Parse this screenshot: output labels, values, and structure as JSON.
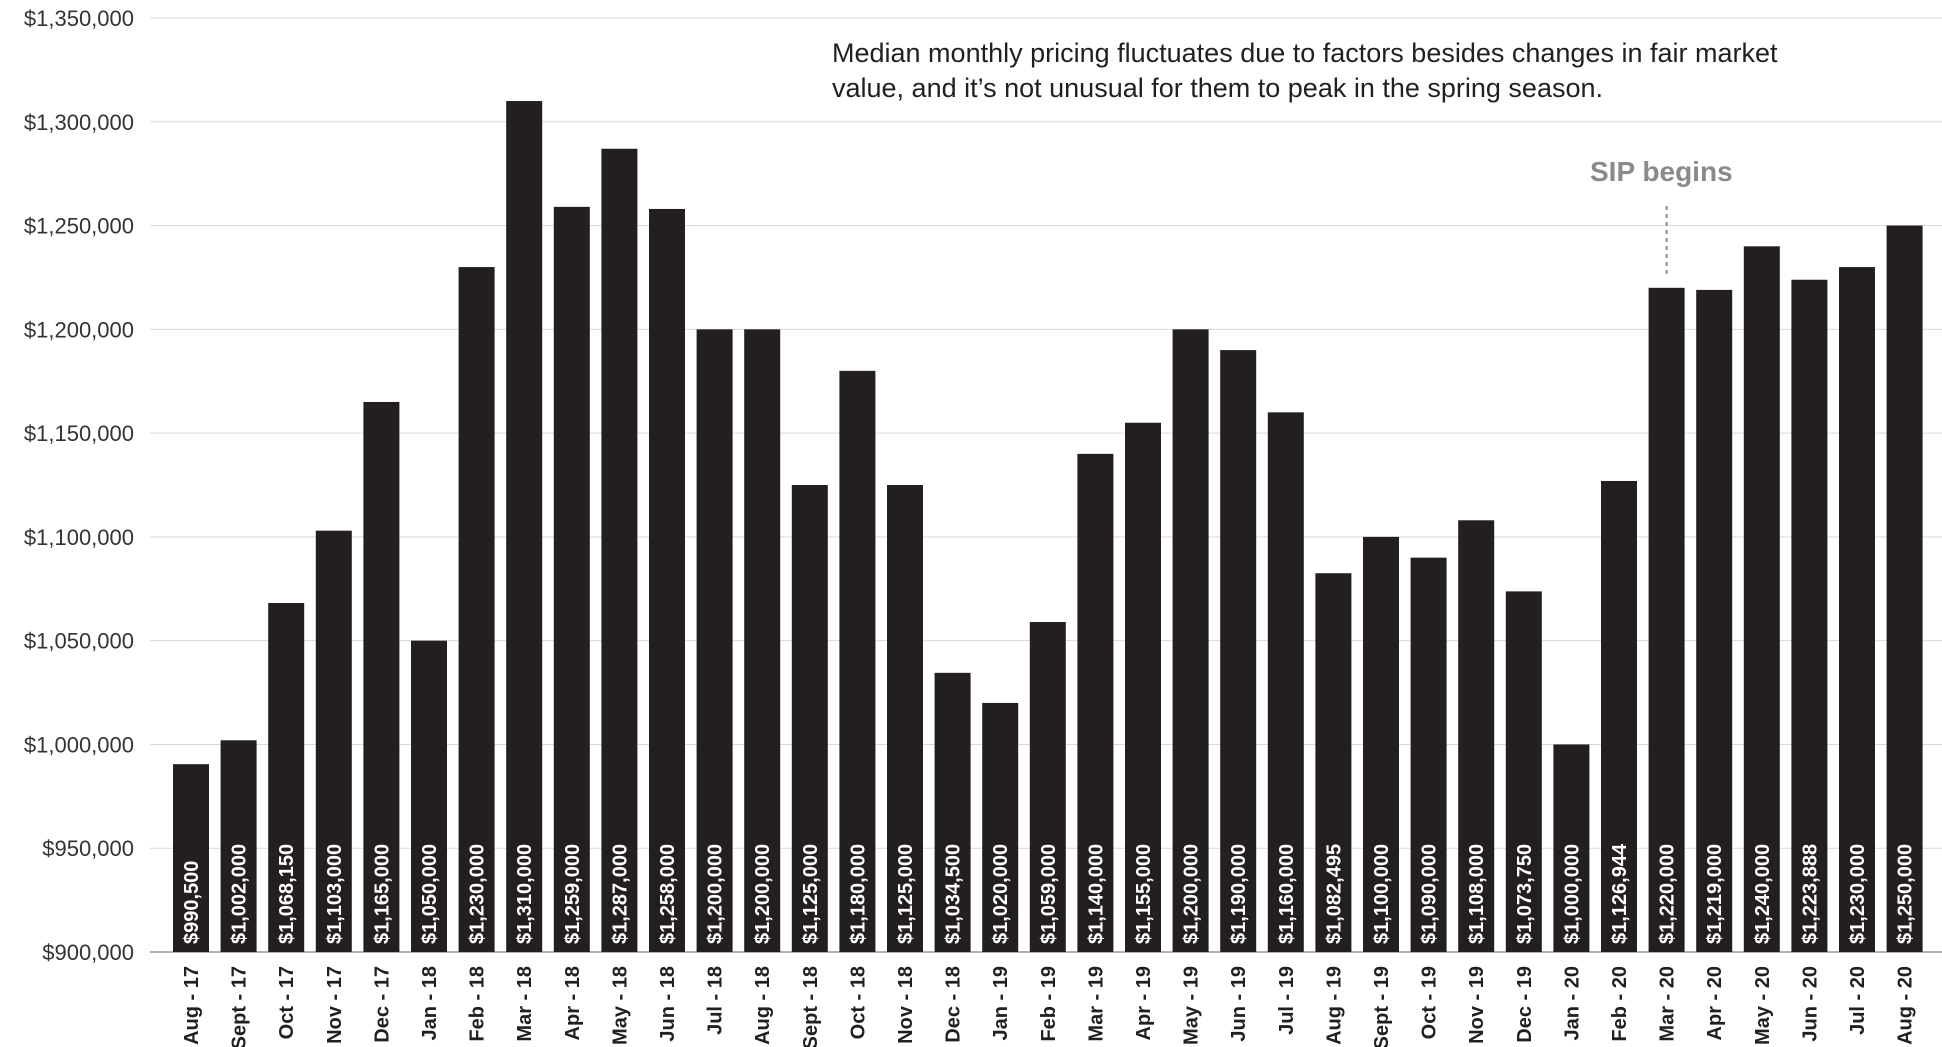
{
  "chart_data": {
    "type": "bar",
    "title": "",
    "xlabel": "",
    "ylabel": "",
    "ylim": [
      900000,
      1350000
    ],
    "yticks": [
      "$900,000",
      "$950,000",
      "$1,000,000",
      "$1,050,000",
      "$1,100,000",
      "$1,150,000",
      "$1,200,000",
      "$1,250,000",
      "$1,300,000",
      "$1,350,000"
    ],
    "ytick_values": [
      900000,
      950000,
      1000000,
      1050000,
      1100000,
      1150000,
      1200000,
      1250000,
      1300000,
      1350000
    ],
    "grid": true,
    "bar_color": "#231f20",
    "categories": [
      "Aug - 17",
      "Sept - 17",
      "Oct - 17",
      "Nov - 17",
      "Dec - 17",
      "Jan - 18",
      "Feb - 18",
      "Mar - 18",
      "Apr - 18",
      "May - 18",
      "Jun - 18",
      "Jul - 18",
      "Aug - 18",
      "Sept - 18",
      "Oct - 18",
      "Nov - 18",
      "Dec - 18",
      "Jan - 19",
      "Feb - 19",
      "Mar - 19",
      "Apr - 19",
      "May - 19",
      "Jun - 19",
      "Jul - 19",
      "Aug - 19",
      "Sept - 19",
      "Oct - 19",
      "Nov - 19",
      "Dec - 19",
      "Jan - 20",
      "Feb - 20",
      "Mar - 20",
      "Apr - 20",
      "May - 20",
      "Jun - 20",
      "Jul - 20",
      "Aug - 20"
    ],
    "values": [
      990500,
      1002000,
      1068150,
      1103000,
      1165000,
      1050000,
      1230000,
      1310000,
      1259000,
      1287000,
      1258000,
      1200000,
      1200000,
      1125000,
      1180000,
      1125000,
      1034500,
      1020000,
      1059000,
      1140000,
      1155000,
      1200000,
      1190000,
      1160000,
      1082495,
      1100000,
      1090000,
      1108000,
      1073750,
      1000000,
      1126944,
      1220000,
      1219000,
      1240000,
      1223888,
      1230000,
      1250000
    ],
    "value_labels": [
      "$990,500",
      "$1,002,000",
      "$1,068,150",
      "$1,103,000",
      "$1,165,000",
      "$1,050,000",
      "$1,230,000",
      "$1,310,000",
      "$1,259,000",
      "$1,287,000",
      "$1,258,000",
      "$1,200,000",
      "$1,200,000",
      "$1,125,000",
      "$1,180,000",
      "$1,125,000",
      "$1,034,500",
      "$1,020,000",
      "$1,059,000",
      "$1,140,000",
      "$1,155,000",
      "$1,200,000",
      "$1,190,000",
      "$1,160,000",
      "$1,082,495",
      "$1,100,000",
      "$1,090,000",
      "$1,108,000",
      "$1,073,750",
      "$1,000,000",
      "$1,126,944",
      "$1,220,000",
      "$1,219,000",
      "$1,240,000",
      "$1,223,888",
      "$1,230,000",
      "$1,250,000"
    ],
    "annotations": [
      {
        "text": "Median monthly pricing fluctuates due to factors besides changes in fair market value, and it’s not unusual for them to peak in the spring season."
      },
      {
        "text": "SIP begins",
        "category": "Mar - 20",
        "color": "#8a8a8a"
      }
    ]
  }
}
